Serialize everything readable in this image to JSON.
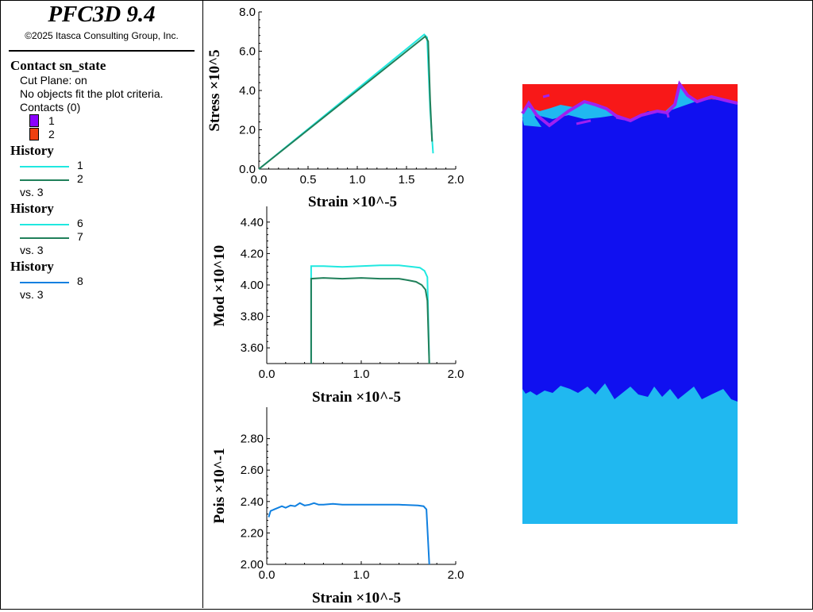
{
  "app": {
    "title": "PFC3D 9.4",
    "copyright": "©2025 Itasca Consulting Group, Inc."
  },
  "legend": {
    "contact_header": "Contact sn_state",
    "cut_plane": "Cut Plane: on",
    "no_objects": "No objects fit the plot criteria.",
    "contacts_label": "Contacts (0)",
    "states": [
      {
        "label": "1",
        "color": "#8b00ff"
      },
      {
        "label": "2",
        "color": "#f04010"
      }
    ],
    "histories": [
      {
        "header": "History",
        "items": [
          {
            "label": "1",
            "color": "#20e8e0"
          },
          {
            "label": "2",
            "color": "#20805a"
          }
        ],
        "vs": "vs. 3"
      },
      {
        "header": "History",
        "items": [
          {
            "label": "6",
            "color": "#20e8e0"
          },
          {
            "label": "7",
            "color": "#20805a"
          }
        ],
        "vs": "vs. 3"
      },
      {
        "header": "History",
        "items": [
          {
            "label": "8",
            "color": "#1080e0"
          }
        ],
        "vs": "vs. 3"
      }
    ]
  },
  "chart_data": [
    {
      "type": "line",
      "xlabel": "Strain ×10^-5",
      "ylabel": "Stress ×10^5",
      "xlim": [
        0,
        2.0
      ],
      "ylim": [
        0,
        8.0
      ],
      "xticks": [
        "0.0",
        "0.5",
        "1.0",
        "1.5",
        "2.0"
      ],
      "yticks": [
        "0.0",
        "2.0",
        "4.0",
        "6.0",
        "8.0"
      ],
      "series": [
        {
          "name": "1",
          "color": "#20e8e0",
          "points": [
            [
              0,
              0
            ],
            [
              1.68,
              6.85
            ],
            [
              1.71,
              6.7
            ],
            [
              1.74,
              3.0
            ],
            [
              1.77,
              0.8
            ]
          ]
        },
        {
          "name": "2",
          "color": "#20805a",
          "points": [
            [
              0,
              0
            ],
            [
              1.69,
              6.75
            ],
            [
              1.72,
              6.5
            ],
            [
              1.74,
              3.5
            ],
            [
              1.76,
              1.4
            ]
          ]
        }
      ]
    },
    {
      "type": "line",
      "xlabel": "Strain ×10^-5",
      "ylabel": "Mod ×10^10",
      "xlim": [
        0,
        2.0
      ],
      "ylim": [
        3.5,
        4.5
      ],
      "xticks": [
        "0.0",
        "1.0",
        "2.0"
      ],
      "yticks": [
        "3.60",
        "3.80",
        "4.00",
        "4.20",
        "4.40"
      ],
      "series": [
        {
          "name": "6",
          "color": "#20e8e0",
          "points": [
            [
              0.47,
              3.5
            ],
            [
              0.47,
              4.12
            ],
            [
              0.6,
              4.12
            ],
            [
              0.8,
              4.115
            ],
            [
              1.0,
              4.12
            ],
            [
              1.2,
              4.125
            ],
            [
              1.4,
              4.125
            ],
            [
              1.55,
              4.115
            ],
            [
              1.62,
              4.11
            ],
            [
              1.67,
              4.09
            ],
            [
              1.7,
              4.05
            ],
            [
              1.72,
              3.5
            ]
          ]
        },
        {
          "name": "7",
          "color": "#20805a",
          "points": [
            [
              0.47,
              3.5
            ],
            [
              0.47,
              4.04
            ],
            [
              0.6,
              4.045
            ],
            [
              0.8,
              4.04
            ],
            [
              1.0,
              4.045
            ],
            [
              1.2,
              4.04
            ],
            [
              1.4,
              4.04
            ],
            [
              1.5,
              4.03
            ],
            [
              1.58,
              4.02
            ],
            [
              1.64,
              4.0
            ],
            [
              1.68,
              3.97
            ],
            [
              1.7,
              3.9
            ],
            [
              1.72,
              3.5
            ]
          ]
        }
      ]
    },
    {
      "type": "line",
      "xlabel": "Strain ×10^-5",
      "ylabel": "Pois ×10^-1",
      "xlim": [
        0,
        2.0
      ],
      "ylim": [
        2.0,
        3.0
      ],
      "xticks": [
        "0.0",
        "1.0",
        "2.0"
      ],
      "yticks": [
        "2.00",
        "2.20",
        "2.40",
        "2.60",
        "2.80"
      ],
      "series": [
        {
          "name": "8",
          "color": "#1080e0",
          "points": [
            [
              0.02,
              2.3
            ],
            [
              0.04,
              2.34
            ],
            [
              0.08,
              2.35
            ],
            [
              0.12,
              2.36
            ],
            [
              0.16,
              2.37
            ],
            [
              0.2,
              2.36
            ],
            [
              0.25,
              2.375
            ],
            [
              0.3,
              2.37
            ],
            [
              0.35,
              2.39
            ],
            [
              0.4,
              2.375
            ],
            [
              0.45,
              2.38
            ],
            [
              0.5,
              2.39
            ],
            [
              0.55,
              2.38
            ],
            [
              0.6,
              2.38
            ],
            [
              0.7,
              2.385
            ],
            [
              0.8,
              2.38
            ],
            [
              0.9,
              2.38
            ],
            [
              1.0,
              2.38
            ],
            [
              1.2,
              2.38
            ],
            [
              1.4,
              2.38
            ],
            [
              1.6,
              2.375
            ],
            [
              1.66,
              2.37
            ],
            [
              1.69,
              2.35
            ],
            [
              1.72,
              2.0
            ]
          ]
        }
      ]
    }
  ],
  "sample_view": {
    "colors": {
      "top": "#f81818",
      "middle": "#1010f0",
      "bottom": "#20b8f0",
      "cracks": "#a020f0"
    }
  }
}
